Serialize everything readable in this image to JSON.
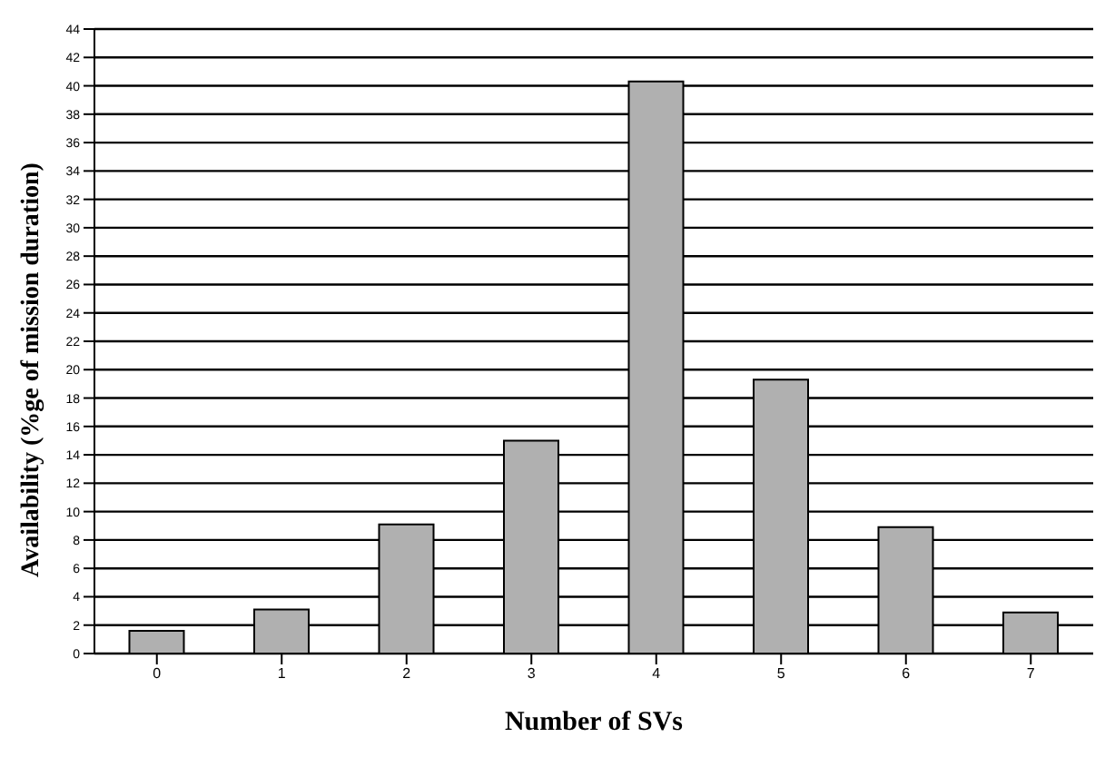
{
  "chart_data": {
    "type": "bar",
    "xlabel": "Number of SVs",
    "ylabel": "Availability (%ge of mission duration)",
    "categories": [
      "0",
      "1",
      "2",
      "3",
      "4",
      "5",
      "6",
      "7"
    ],
    "values": [
      1.6,
      3.1,
      9.1,
      15.0,
      40.3,
      19.3,
      8.9,
      2.9
    ],
    "color": "#b0b0b0",
    "ylim": [
      0,
      44
    ],
    "yticks": [
      0,
      2,
      4,
      6,
      8,
      10,
      12,
      14,
      16,
      18,
      20,
      22,
      24,
      26,
      28,
      30,
      32,
      34,
      36,
      38,
      40,
      42,
      44
    ],
    "grid": "y"
  }
}
